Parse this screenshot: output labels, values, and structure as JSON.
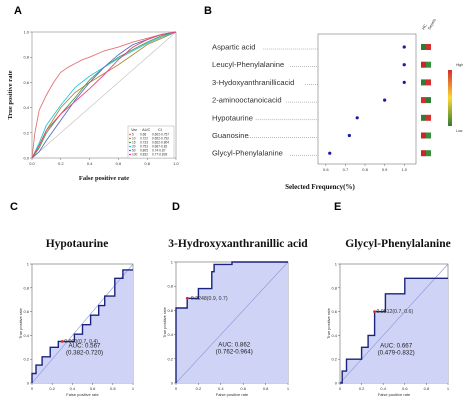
{
  "panels": {
    "a": "A",
    "b": "B",
    "c": "C",
    "d": "D",
    "e": "E"
  },
  "colors": {
    "roc_fill": "#cfd3f6",
    "roc_line": "#1a237e",
    "diag": "#8c96d8",
    "dot": "#1a1aa8",
    "cut_point": "#d32f2f",
    "heat_high": "#d32f2f",
    "heat_low": "#2e7d32"
  },
  "chart_data": [
    {
      "type": "line",
      "panel": "A",
      "xlabel": "False positive rate",
      "ylabel": "True positive rate",
      "xlim": [
        0,
        1
      ],
      "ylim": [
        0,
        1
      ],
      "x_ticks": [
        "0.0",
        "0.2",
        "0.4",
        "0.6",
        "0.8",
        "1.0"
      ],
      "y_ticks": [
        "0.0",
        "0.2",
        "0.4",
        "0.6",
        "0.8",
        "1.0"
      ],
      "legend_header": [
        "Var",
        "AUC",
        "CI"
      ],
      "legend_placement": "bottom-right",
      "series": [
        {
          "legend_var": "5",
          "legend_auc": "0.68",
          "legend_ci": "0.602-0.757",
          "color": "#e57373",
          "x": [
            0,
            0.02,
            0.05,
            0.1,
            0.15,
            0.2,
            0.25,
            0.3,
            0.35,
            0.4,
            0.5,
            0.6,
            0.7,
            0.8,
            0.9,
            1
          ],
          "y": [
            0,
            0.2,
            0.38,
            0.5,
            0.6,
            0.68,
            0.72,
            0.75,
            0.78,
            0.8,
            0.85,
            0.88,
            0.92,
            0.95,
            0.98,
            1
          ]
        },
        {
          "legend_var": "10",
          "legend_auc": "0.722",
          "legend_ci": "0.652-0.792",
          "color": "#b0883a",
          "x": [
            0,
            0.05,
            0.1,
            0.2,
            0.3,
            0.4,
            0.5,
            0.6,
            0.7,
            0.8,
            0.9,
            1
          ],
          "y": [
            0,
            0.1,
            0.22,
            0.4,
            0.52,
            0.6,
            0.67,
            0.74,
            0.82,
            0.9,
            0.95,
            1
          ]
        },
        {
          "legend_var": "15",
          "legend_auc": "0.733",
          "legend_ci": "0.662-0.804",
          "color": "#43a047",
          "x": [
            0,
            0.05,
            0.1,
            0.2,
            0.3,
            0.4,
            0.5,
            0.6,
            0.7,
            0.8,
            0.9,
            1
          ],
          "y": [
            0,
            0.08,
            0.2,
            0.35,
            0.48,
            0.62,
            0.72,
            0.8,
            0.86,
            0.92,
            0.97,
            1
          ]
        },
        {
          "legend_var": "20",
          "legend_auc": "0.753",
          "legend_ci": "0.687-0.82",
          "color": "#26c6da",
          "x": [
            0,
            0.05,
            0.1,
            0.2,
            0.3,
            0.4,
            0.5,
            0.6,
            0.7,
            0.8,
            0.9,
            1
          ],
          "y": [
            0,
            0.12,
            0.26,
            0.42,
            0.56,
            0.65,
            0.72,
            0.79,
            0.85,
            0.91,
            0.96,
            1
          ]
        },
        {
          "legend_var": "50",
          "legend_auc": "0.805",
          "legend_ci": "0.74-0.87",
          "color": "#5c6bc0",
          "x": [
            0,
            0.05,
            0.1,
            0.2,
            0.3,
            0.4,
            0.5,
            0.6,
            0.7,
            0.8,
            0.9,
            1
          ],
          "y": [
            0,
            0.05,
            0.14,
            0.3,
            0.46,
            0.6,
            0.72,
            0.82,
            0.9,
            0.94,
            0.98,
            1
          ]
        },
        {
          "legend_var": "100",
          "legend_auc": "0.832",
          "legend_ci": "0.77-0.893",
          "color": "#ec407a",
          "x": [
            0,
            0.05,
            0.1,
            0.2,
            0.3,
            0.4,
            0.5,
            0.6,
            0.7,
            0.8,
            0.9,
            1
          ],
          "y": [
            0,
            0.1,
            0.22,
            0.35,
            0.45,
            0.55,
            0.66,
            0.78,
            0.88,
            0.94,
            0.98,
            1
          ]
        }
      ]
    },
    {
      "type": "scatter",
      "panel": "B",
      "xlabel": "Selected Frequency(%)",
      "xlim": [
        0.56,
        1.06
      ],
      "x_ticks": [
        "0.6",
        "0.7",
        "0.8",
        "0.9",
        "1.0"
      ],
      "x_tick_values": [
        0.6,
        0.7,
        0.8,
        0.9,
        1.0
      ],
      "column_labels": [
        "HC",
        "Sepsis"
      ],
      "colorbar_labels": [
        "High",
        "Low"
      ],
      "categories": [
        "Aspartic acid",
        "Leucyl-Phenylalanine",
        "3-Hydoxyanthranillicacid",
        "2-aminooctanoicacid",
        "Hypotaurine",
        "Guanosine",
        "Glycyl-Phenylalanine"
      ],
      "values": [
        1.0,
        1.0,
        1.0,
        0.9,
        0.76,
        0.72,
        0.62
      ],
      "heat_colors": [
        [
          "#2e7d32",
          "#d32f2f"
        ],
        [
          "#c62828",
          "#388e3c"
        ],
        [
          "#2e7d32",
          "#d32f2f"
        ],
        [
          "#d32f2f",
          "#2e7d32"
        ],
        [
          "#2e7d32",
          "#d32f2f"
        ],
        [
          "#c62828",
          "#388e3c"
        ],
        [
          "#c62828",
          "#388e3c"
        ]
      ]
    },
    {
      "type": "line",
      "panel": "C",
      "title": "Hypotaurine",
      "xlabel": "False positive rate",
      "ylabel": "True positive rate",
      "xlim": [
        0,
        1
      ],
      "ylim": [
        0,
        1
      ],
      "ticks": [
        "0",
        "0.2",
        "0.4",
        "0.6",
        "0.8",
        "1"
      ],
      "x": [
        0,
        0,
        0.04,
        0.04,
        0.1,
        0.1,
        0.18,
        0.18,
        0.26,
        0.26,
        0.3,
        0.3,
        0.42,
        0.42,
        0.5,
        0.5,
        0.58,
        0.58,
        0.66,
        0.66,
        0.72,
        0.72,
        0.82,
        0.82,
        0.9,
        0.9,
        1
      ],
      "y": [
        0,
        0.08,
        0.08,
        0.15,
        0.15,
        0.22,
        0.22,
        0.3,
        0.3,
        0.35,
        0.35,
        0.35,
        0.35,
        0.41,
        0.41,
        0.49,
        0.49,
        0.57,
        0.57,
        0.65,
        0.65,
        0.73,
        0.73,
        0.88,
        0.88,
        0.95,
        0.95
      ],
      "cut_point": {
        "x": 0.3,
        "y": 0.35,
        "label": "0.000(0.7, 0.4)"
      },
      "auc_label": "AUC: 0.567",
      "ci_label": "(0.382-0.720)"
    },
    {
      "type": "line",
      "panel": "D",
      "title": "3-Hydroxyxanthranillic acid",
      "xlabel": "False positive rate",
      "ylabel": "True positive rate",
      "xlim": [
        0,
        1
      ],
      "ylim": [
        0,
        1
      ],
      "ticks": [
        "0",
        "0.2",
        "0.4",
        "0.6",
        "0.8",
        "1"
      ],
      "x": [
        0,
        0,
        0.1,
        0.1,
        0.2,
        0.2,
        0.32,
        0.32,
        0.34,
        0.34,
        0.5,
        0.5,
        1
      ],
      "y": [
        0,
        0.62,
        0.62,
        0.7,
        0.7,
        0.78,
        0.78,
        0.92,
        0.92,
        0.98,
        0.98,
        1,
        1
      ],
      "cut_point": {
        "x": 0.1,
        "y": 0.7,
        "label": "-0.2248(0.9, 0.7)"
      },
      "auc_label": "AUC: 0.862",
      "ci_label": "(0.762-0.964)"
    },
    {
      "type": "line",
      "panel": "E",
      "title": "Glycyl-Phenylalanine",
      "xlabel": "False positive rate",
      "ylabel": "True positive rate",
      "xlim": [
        0,
        1
      ],
      "ylim": [
        0,
        1
      ],
      "ticks": [
        "0",
        "0.2",
        "0.4",
        "0.6",
        "0.8",
        "1"
      ],
      "x": [
        0,
        0.02,
        0.02,
        0.06,
        0.06,
        0.2,
        0.2,
        0.26,
        0.26,
        0.32,
        0.32,
        0.42,
        0.42,
        0.6,
        0.6,
        1
      ],
      "y": [
        0,
        0,
        0.1,
        0.1,
        0.2,
        0.2,
        0.3,
        0.3,
        0.4,
        0.4,
        0.6,
        0.6,
        0.75,
        0.75,
        0.88,
        0.88
      ],
      "cut_point": {
        "x": 0.32,
        "y": 0.6,
        "label": "0.0512(0.7, 0.6)"
      },
      "auc_label": "AUC: 0.667",
      "ci_label": "(0.479-0.832)"
    }
  ]
}
